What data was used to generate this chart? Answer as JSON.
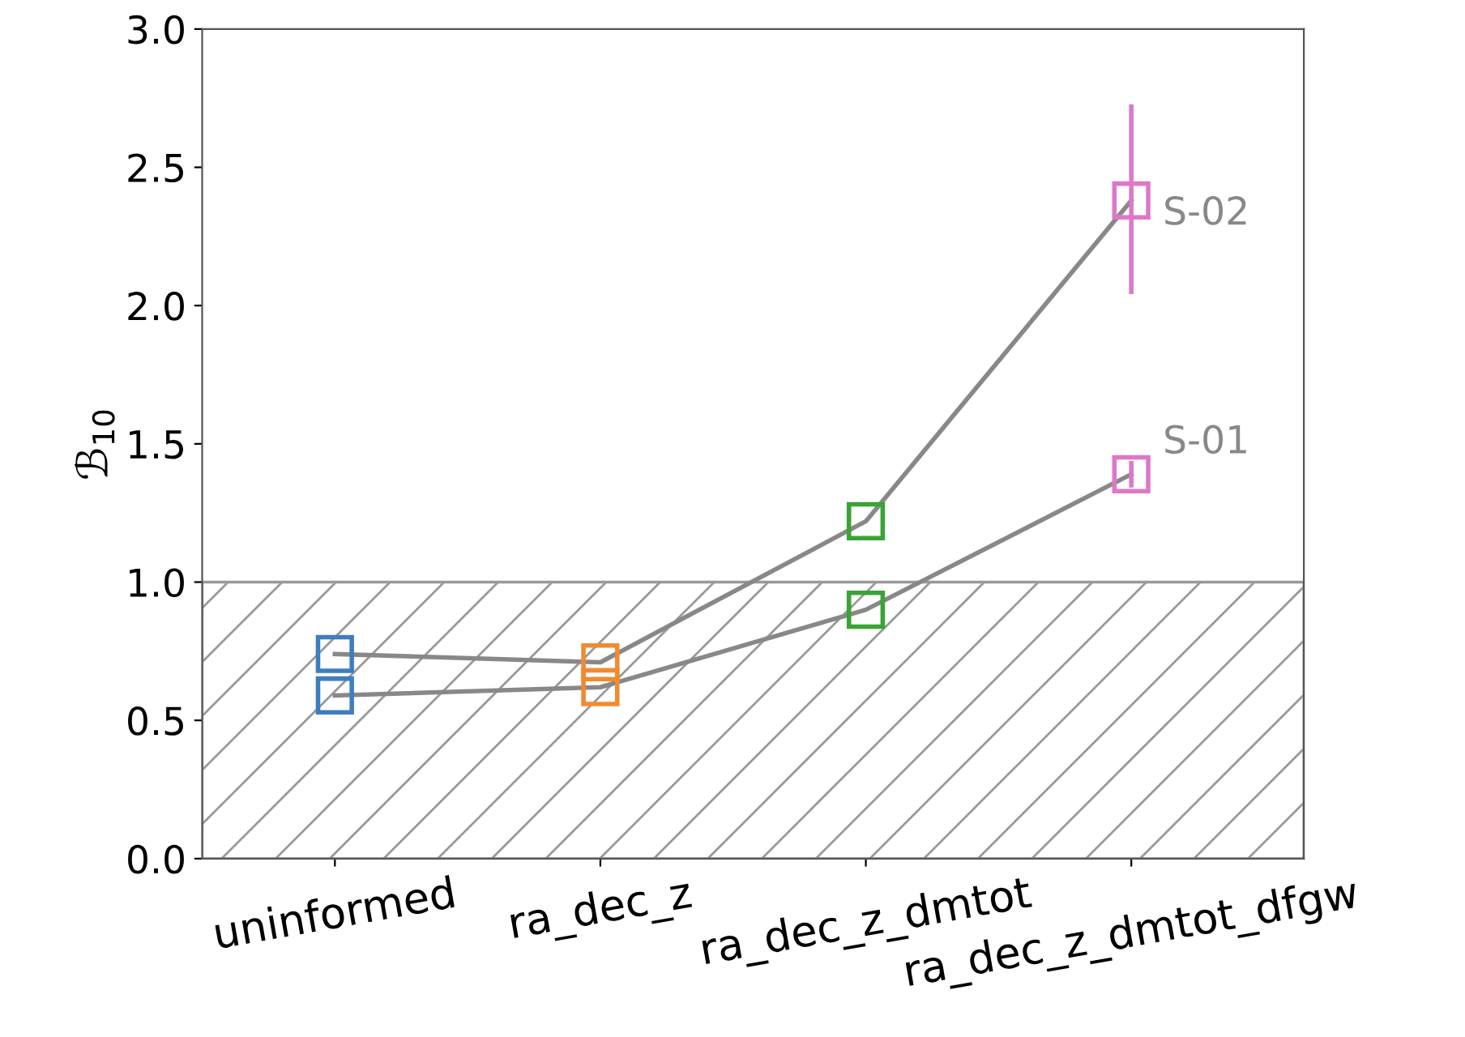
{
  "chart_data": {
    "type": "line",
    "ylabel": "ℬ$_{10}$",
    "categories": [
      "uninformed",
      "ra_dec_z",
      "ra_dec_z_dmtot",
      "ra_dec_z_dmtot_dfgw"
    ],
    "series": [
      {
        "name": "S-01",
        "color": "#888888",
        "colors": [
          "#3d7ebf",
          "#f28a30",
          "#3aa335",
          "#dd78c8"
        ],
        "values": [
          0.59,
          0.62,
          0.9,
          1.39
        ],
        "errors": [
          null,
          null,
          null,
          0.04
        ]
      },
      {
        "name": "S-02",
        "color": "#888888",
        "colors": [
          "#3d7ebf",
          "#f28a30",
          "#3aa335",
          "#dd78c8"
        ],
        "values": [
          0.74,
          0.71,
          1.22,
          2.38
        ],
        "errors": [
          null,
          null,
          null,
          [
            2.05,
            2.72
          ]
        ]
      }
    ],
    "ylim": [
      0,
      3
    ],
    "yticks": [
      {
        "value": 0,
        "label": "0.0"
      },
      {
        "value": 0.5,
        "label": "0.5"
      },
      {
        "value": 1,
        "label": "1.0"
      },
      {
        "value": 1.5,
        "label": "1.5"
      },
      {
        "value": 2,
        "label": "2.0"
      },
      {
        "value": 2.5,
        "label": "2.5"
      },
      {
        "value": 3,
        "label": "3.0"
      }
    ],
    "bands": [
      {
        "axis": "y",
        "from": 0,
        "to": 1,
        "color": "#999999"
      }
    ],
    "marker": "square",
    "grid": false
  }
}
